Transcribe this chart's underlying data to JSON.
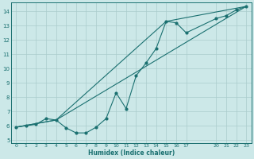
{
  "background_color": "#cce8e8",
  "grid_color": "#aacccc",
  "line_color": "#1a7070",
  "xlabel": "Humidex (Indice chaleur)",
  "xlim": [
    -0.5,
    23.5
  ],
  "ylim": [
    4.8,
    14.6
  ],
  "xticks": [
    0,
    1,
    2,
    3,
    4,
    5,
    6,
    7,
    8,
    9,
    10,
    11,
    12,
    13,
    14,
    15,
    16,
    17,
    20,
    21,
    22,
    23
  ],
  "xtick_positions": [
    0,
    1,
    2,
    3,
    4,
    5,
    6,
    7,
    8,
    9,
    10,
    11,
    12,
    13,
    14,
    15,
    16,
    17,
    20,
    21,
    22,
    23
  ],
  "yticks": [
    5,
    6,
    7,
    8,
    9,
    10,
    11,
    12,
    13,
    14
  ],
  "line1_x": [
    0,
    1,
    2,
    3,
    4,
    5,
    6,
    7,
    8,
    9,
    10,
    11,
    12,
    13,
    14,
    15,
    16,
    17,
    20,
    21,
    22,
    23
  ],
  "line1_y": [
    5.9,
    6.0,
    6.1,
    6.5,
    6.4,
    5.85,
    5.5,
    5.5,
    5.9,
    6.5,
    8.3,
    7.2,
    9.5,
    10.4,
    11.4,
    13.3,
    13.2,
    12.5,
    13.5,
    13.7,
    14.1,
    14.35
  ],
  "line2_x": [
    0,
    4,
    23
  ],
  "line2_y": [
    5.9,
    6.4,
    14.35
  ],
  "line3_x": [
    0,
    4,
    15,
    23
  ],
  "line3_y": [
    5.9,
    6.4,
    13.3,
    14.35
  ]
}
